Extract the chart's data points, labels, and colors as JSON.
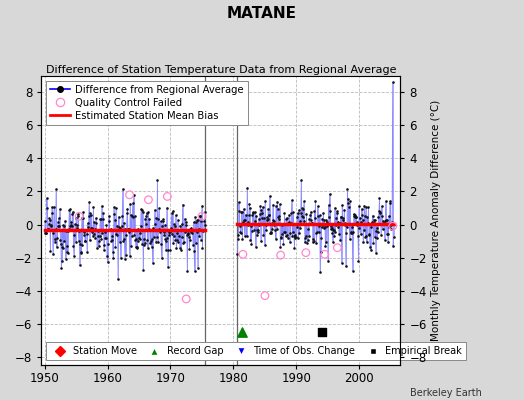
{
  "title": "MATANE",
  "subtitle": "Difference of Station Temperature Data from Regional Average",
  "ylabel_right": "Monthly Temperature Anomaly Difference (°C)",
  "xlim": [
    1949.5,
    2006.5
  ],
  "ylim": [
    -8.5,
    9.0
  ],
  "yticks": [
    -8,
    -6,
    -4,
    -2,
    0,
    2,
    4,
    6,
    8
  ],
  "xticks": [
    1950,
    1960,
    1970,
    1980,
    1990,
    2000
  ],
  "background_color": "#d8d8d8",
  "plot_bg_color": "#ffffff",
  "grid_color": "#bbbbbb",
  "line_color": "#8888ff",
  "dot_color": "#111111",
  "bias_color": "#ff0000",
  "bias_level_seg1": -0.35,
  "bias_level_seg2": 0.05,
  "seg1_start": 1950.0,
  "seg1_end": 1975.5,
  "seg2_start": 1980.5,
  "seg2_end": 2005.5,
  "gap_start": 1975.5,
  "gap_end": 1980.5,
  "record_gap_x": 1981.3,
  "record_gap_y": -6.5,
  "empirical_break_x": 1994.0,
  "empirical_break_y": -6.5,
  "big_spike_x": 2005.3,
  "big_spike_y": 8.6,
  "qc_failed_x": [
    1955.5,
    1963.5,
    1966.5,
    1969.5,
    1972.5,
    1975.0,
    1981.5,
    1985.0,
    1987.5,
    1991.5,
    1994.5,
    1996.5,
    2005.3
  ],
  "qc_failed_y": [
    0.5,
    1.8,
    1.5,
    1.7,
    -4.5,
    0.5,
    -1.8,
    -4.3,
    -1.85,
    -1.7,
    -1.8,
    -1.4,
    -0.1
  ],
  "berkeley_earth_text": "Berkeley Earth",
  "seed": 12345
}
